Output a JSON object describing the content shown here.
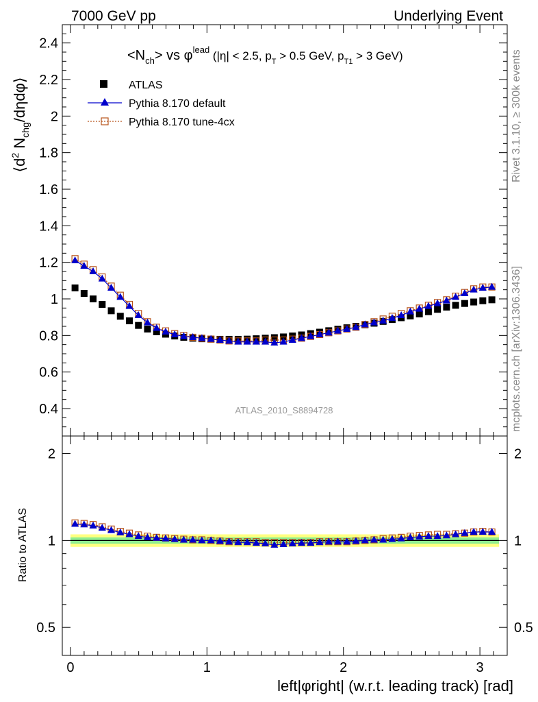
{
  "header": {
    "left": "7000 GeV pp",
    "right": "Underlying Event"
  },
  "side": {
    "rivet": "Rivet 3.1.10, ≥ 300k events",
    "mcplots": "mcplots.cern.ch [arXiv:1306.3436]"
  },
  "watermark": "ATLAS_2010_S8894728",
  "plot_title": "<N_ch> vs φ^lead (|η| < 2.5, p_T > 0.5 GeV, p_T1 > 3 GeV)",
  "colors": {
    "atlas": "#000000",
    "default": "#0000cc",
    "tune4cx": "#b8541a",
    "band_inner": "#90ee90",
    "band_outer": "#ffff80"
  },
  "chart_data": [
    {
      "type": "scatter",
      "title": "<N_ch> vs φ^lead (|η| < 2.5, p_T > 0.5 GeV, p_T1 > 3 GeV)",
      "xlabel": "left|φright| (w.r.t. leading track) [rad]",
      "ylabel": "⟨d² N_chg/dηdφ⟩",
      "xlim": [
        -0.06,
        3.2
      ],
      "ylim": [
        0.25,
        2.5
      ],
      "xticks": [
        "0",
        "1",
        "2",
        "3"
      ],
      "yticks": [
        "0.4",
        "0.6",
        "0.8",
        "1",
        "1.2",
        "1.4",
        "1.6",
        "1.8",
        "2",
        "2.2",
        "2.4"
      ],
      "legend": "top-left",
      "series": [
        {
          "name": "ATLAS",
          "marker": "square",
          "x": [
            0.0333,
            0.0997,
            0.166,
            0.2324,
            0.2988,
            0.3652,
            0.4316,
            0.498,
            0.5644,
            0.6308,
            0.6972,
            0.7636,
            0.83,
            0.8964,
            0.9628,
            1.0292,
            1.0956,
            1.162,
            1.2284,
            1.2948,
            1.3612,
            1.4276,
            1.494,
            1.5604,
            1.6268,
            1.6932,
            1.7596,
            1.826,
            1.8924,
            1.9588,
            2.0252,
            2.0916,
            2.158,
            2.2244,
            2.2908,
            2.3572,
            2.4236,
            2.49,
            2.5564,
            2.6228,
            2.6892,
            2.7556,
            2.822,
            2.8884,
            2.9548,
            3.0212,
            3.0876
          ],
          "y": [
            1.06,
            1.03,
            1.0,
            0.97,
            0.935,
            0.905,
            0.88,
            0.855,
            0.835,
            0.82,
            0.807,
            0.797,
            0.79,
            0.785,
            0.782,
            0.78,
            0.779,
            0.779,
            0.779,
            0.78,
            0.782,
            0.785,
            0.788,
            0.792,
            0.797,
            0.803,
            0.81,
            0.818,
            0.826,
            0.834,
            0.842,
            0.85,
            0.858,
            0.867,
            0.877,
            0.887,
            0.897,
            0.907,
            0.918,
            0.93,
            0.943,
            0.955,
            0.965,
            0.975,
            0.983,
            0.99,
            0.995
          ]
        },
        {
          "name": "Pythia 8.170 default",
          "marker": "triangle",
          "x": [
            0.0333,
            0.0997,
            0.166,
            0.2324,
            0.2988,
            0.3652,
            0.4316,
            0.498,
            0.5644,
            0.6308,
            0.6972,
            0.7636,
            0.83,
            0.8964,
            0.9628,
            1.0292,
            1.0956,
            1.162,
            1.2284,
            1.2948,
            1.3612,
            1.4276,
            1.494,
            1.5604,
            1.6268,
            1.6932,
            1.7596,
            1.826,
            1.8924,
            1.9588,
            2.0252,
            2.0916,
            2.158,
            2.2244,
            2.2908,
            2.3572,
            2.4236,
            2.49,
            2.5564,
            2.6228,
            2.6892,
            2.7556,
            2.822,
            2.8884,
            2.9548,
            3.0212,
            3.0876
          ],
          "y": [
            1.21,
            1.18,
            1.15,
            1.11,
            1.06,
            1.01,
            0.96,
            0.91,
            0.87,
            0.84,
            0.82,
            0.805,
            0.795,
            0.79,
            0.785,
            0.78,
            0.775,
            0.77,
            0.765,
            0.765,
            0.765,
            0.765,
            0.76,
            0.765,
            0.775,
            0.785,
            0.795,
            0.805,
            0.815,
            0.825,
            0.835,
            0.845,
            0.86,
            0.87,
            0.88,
            0.895,
            0.91,
            0.93,
            0.945,
            0.96,
            0.975,
            0.99,
            1.01,
            1.03,
            1.05,
            1.06,
            1.065
          ]
        },
        {
          "name": "Pythia 8.170 tune-4cx",
          "marker": "open-square",
          "x": [
            0.0333,
            0.0997,
            0.166,
            0.2324,
            0.2988,
            0.3652,
            0.4316,
            0.498,
            0.5644,
            0.6308,
            0.6972,
            0.7636,
            0.83,
            0.8964,
            0.9628,
            1.0292,
            1.0956,
            1.162,
            1.2284,
            1.2948,
            1.3612,
            1.4276,
            1.494,
            1.5604,
            1.6268,
            1.6932,
            1.7596,
            1.826,
            1.8924,
            1.9588,
            2.0252,
            2.0916,
            2.158,
            2.2244,
            2.2908,
            2.3572,
            2.4236,
            2.49,
            2.5564,
            2.6228,
            2.6892,
            2.7556,
            2.822,
            2.8884,
            2.9548,
            3.0212,
            3.0876
          ],
          "y": [
            1.22,
            1.19,
            1.16,
            1.12,
            1.07,
            1.02,
            0.97,
            0.92,
            0.875,
            0.845,
            0.825,
            0.81,
            0.8,
            0.79,
            0.785,
            0.78,
            0.775,
            0.77,
            0.77,
            0.77,
            0.77,
            0.775,
            0.775,
            0.775,
            0.78,
            0.785,
            0.795,
            0.805,
            0.815,
            0.825,
            0.835,
            0.845,
            0.86,
            0.875,
            0.89,
            0.905,
            0.92,
            0.935,
            0.95,
            0.965,
            0.98,
            0.995,
            1.015,
            1.035,
            1.055,
            1.065,
            1.065
          ]
        }
      ]
    },
    {
      "type": "scatter",
      "xlabel": "left|φright| (w.r.t. leading track) [rad]",
      "ylabel": "Ratio to ATLAS",
      "xlim": [
        -0.06,
        3.2
      ],
      "ylim": [
        0.4,
        2.3
      ],
      "yscale": "log",
      "xticks": [
        "0",
        "1",
        "2",
        "3"
      ],
      "yticks": [
        "0.5",
        "1",
        "2"
      ],
      "band": {
        "inner": [
          0.975,
          1.025
        ],
        "outer": [
          0.95,
          1.05
        ]
      },
      "series": [
        {
          "name": "Pythia 8.170 default",
          "marker": "triangle",
          "x": [
            0.0333,
            0.0997,
            0.166,
            0.2324,
            0.2988,
            0.3652,
            0.4316,
            0.498,
            0.5644,
            0.6308,
            0.6972,
            0.7636,
            0.83,
            0.8964,
            0.9628,
            1.0292,
            1.0956,
            1.162,
            1.2284,
            1.2948,
            1.3612,
            1.4276,
            1.494,
            1.5604,
            1.6268,
            1.6932,
            1.7596,
            1.826,
            1.8924,
            1.9588,
            2.0252,
            2.0916,
            2.158,
            2.2244,
            2.2908,
            2.3572,
            2.4236,
            2.49,
            2.5564,
            2.6228,
            2.6892,
            2.7556,
            2.822,
            2.8884,
            2.9548,
            3.0212,
            3.0876
          ],
          "y": [
            1.14,
            1.135,
            1.125,
            1.105,
            1.085,
            1.065,
            1.05,
            1.035,
            1.025,
            1.02,
            1.015,
            1.01,
            1.005,
            1.005,
            1.0,
            1.0,
            0.995,
            0.99,
            0.985,
            0.985,
            0.98,
            0.975,
            0.965,
            0.97,
            0.975,
            0.98,
            0.98,
            0.985,
            0.99,
            0.99,
            0.99,
            0.995,
            1.0,
            1.005,
            1.005,
            1.01,
            1.015,
            1.025,
            1.03,
            1.035,
            1.035,
            1.04,
            1.05,
            1.06,
            1.07,
            1.07,
            1.07
          ]
        },
        {
          "name": "Pythia 8.170 tune-4cx",
          "marker": "open-square",
          "x": [
            0.0333,
            0.0997,
            0.166,
            0.2324,
            0.2988,
            0.3652,
            0.4316,
            0.498,
            0.5644,
            0.6308,
            0.6972,
            0.7636,
            0.83,
            0.8964,
            0.9628,
            1.0292,
            1.0956,
            1.162,
            1.2284,
            1.2948,
            1.3612,
            1.4276,
            1.494,
            1.5604,
            1.6268,
            1.6932,
            1.7596,
            1.826,
            1.8924,
            1.9588,
            2.0252,
            2.0916,
            2.158,
            2.2244,
            2.2908,
            2.3572,
            2.4236,
            2.49,
            2.5564,
            2.6228,
            2.6892,
            2.7556,
            2.822,
            2.8884,
            2.9548,
            3.0212,
            3.0876
          ],
          "y": [
            1.15,
            1.145,
            1.135,
            1.115,
            1.095,
            1.075,
            1.06,
            1.045,
            1.035,
            1.025,
            1.02,
            1.015,
            1.01,
            1.005,
            1.005,
            1.0,
            0.995,
            0.99,
            0.99,
            0.99,
            0.99,
            0.985,
            0.985,
            0.985,
            0.985,
            0.985,
            0.985,
            0.99,
            0.99,
            0.99,
            0.99,
            0.995,
            1.0,
            1.005,
            1.015,
            1.02,
            1.025,
            1.035,
            1.04,
            1.045,
            1.05,
            1.05,
            1.055,
            1.06,
            1.07,
            1.075,
            1.07
          ]
        }
      ]
    }
  ]
}
